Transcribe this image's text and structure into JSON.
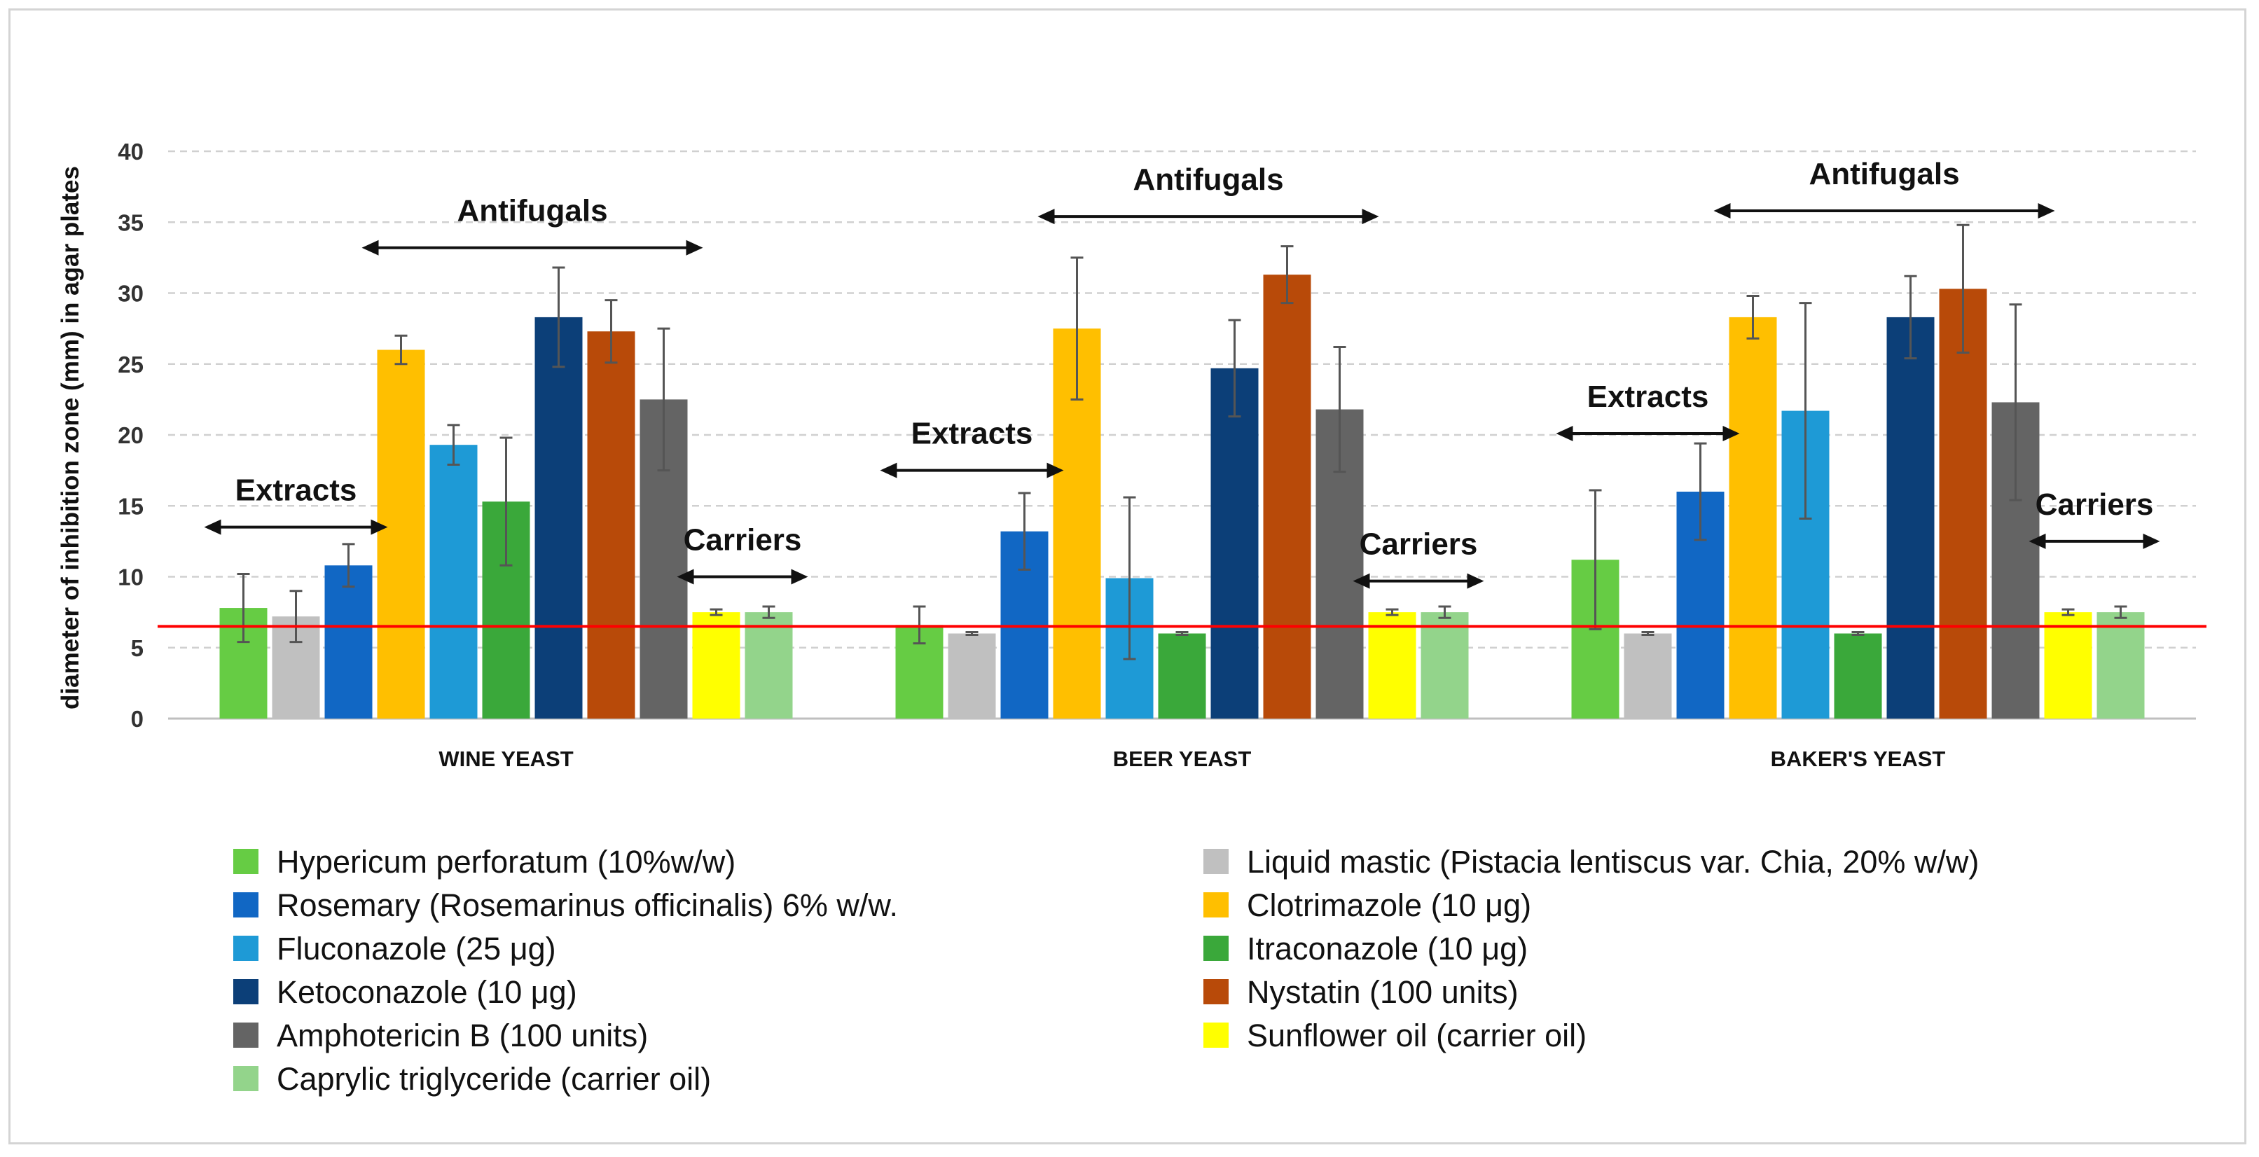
{
  "chart_data": {
    "type": "bar",
    "ylabel": "diameter of inhibition zone (mm) in agar plates",
    "xlabel": "",
    "ylim": [
      0,
      40
    ],
    "yticks": [
      0,
      5,
      10,
      15,
      20,
      25,
      30,
      35,
      40
    ],
    "grid": true,
    "legend_position": "bottom",
    "categories": [
      "WINE YEAST",
      "BEER YEAST",
      "BAKER'S YEAST"
    ],
    "series": [
      {
        "name": "Hypericum perforatum (10%w/w)",
        "color": "#66cc44",
        "values": [
          7.8,
          6.6,
          11.2
        ],
        "errors": [
          2.4,
          1.3,
          4.9
        ]
      },
      {
        "name": "Liquid mastic (Pistacia lentiscus var. Chia, 20% w/w)",
        "color": "#c0c0c0",
        "values": [
          7.2,
          6.0,
          6.0
        ],
        "errors": [
          1.8,
          0.1,
          0.1
        ]
      },
      {
        "name": "Rosemary (Rosemarinus officinalis) 6% w/w.",
        "color": "#1167c4",
        "values": [
          10.8,
          13.2,
          16.0
        ],
        "errors": [
          1.5,
          2.7,
          3.4
        ]
      },
      {
        "name": "Clotrimazole (10 μg)",
        "color": "#ffbf00",
        "values": [
          26.0,
          27.5,
          28.3
        ],
        "errors": [
          1.0,
          5.0,
          1.5
        ]
      },
      {
        "name": "Fluconazole (25 μg)",
        "color": "#1e9ad6",
        "values": [
          19.3,
          9.9,
          21.7
        ],
        "errors": [
          1.4,
          5.7,
          7.6
        ]
      },
      {
        "name": "Itraconazole (10 μg)",
        "color": "#3aa83a",
        "values": [
          15.3,
          6.0,
          6.0
        ],
        "errors": [
          4.5,
          0.1,
          0.1
        ]
      },
      {
        "name": "Ketoconazole (10 μg)",
        "color": "#0c3f78",
        "values": [
          28.3,
          24.7,
          28.3
        ],
        "errors": [
          3.5,
          3.4,
          2.9
        ]
      },
      {
        "name": "Nystatin (100 units)",
        "color": "#b84a09",
        "values": [
          27.3,
          31.3,
          30.3
        ],
        "errors": [
          2.2,
          2.0,
          4.5
        ]
      },
      {
        "name": "Amphotericin B (100 units)",
        "color": "#646464",
        "values": [
          22.5,
          21.8,
          22.3
        ],
        "errors": [
          5.0,
          4.4,
          6.9
        ]
      },
      {
        "name": "Sunflower oil (carrier oil)",
        "color": "#ffff00",
        "values": [
          7.5,
          7.5,
          7.5
        ],
        "errors": [
          0.2,
          0.2,
          0.2
        ]
      },
      {
        "name": "Caprylic triglyceride (carrier oil)",
        "color": "#93d48b",
        "values": [
          7.5,
          7.5,
          7.5
        ],
        "errors": [
          0.4,
          0.4,
          0.4
        ]
      }
    ],
    "reference_line": {
      "y": 6.5,
      "color": "#ff0000"
    },
    "annotations": [
      {
        "text": "Extracts",
        "group": 0,
        "from_series": 0,
        "to_series": 2,
        "y": 13.5
      },
      {
        "text": "Antifugals",
        "group": 0,
        "from_series": 3,
        "to_series": 8,
        "y": 33.2
      },
      {
        "text": "Carriers",
        "group": 0,
        "from_series": 9,
        "to_series": 10,
        "y": 10.0
      },
      {
        "text": "Extracts",
        "group": 1,
        "from_series": 0,
        "to_series": 2,
        "y": 17.5
      },
      {
        "text": "Antifugals",
        "group": 1,
        "from_series": 3,
        "to_series": 8,
        "y": 35.4
      },
      {
        "text": "Carriers",
        "group": 1,
        "from_series": 9,
        "to_series": 10,
        "y": 9.7
      },
      {
        "text": "Extracts",
        "group": 2,
        "from_series": 0,
        "to_series": 2,
        "y": 20.1
      },
      {
        "text": "Antifugals",
        "group": 2,
        "from_series": 3,
        "to_series": 8,
        "y": 35.8
      },
      {
        "text": "Carriers",
        "group": 2,
        "from_series": 9,
        "to_series": 10,
        "y": 12.5
      }
    ]
  }
}
